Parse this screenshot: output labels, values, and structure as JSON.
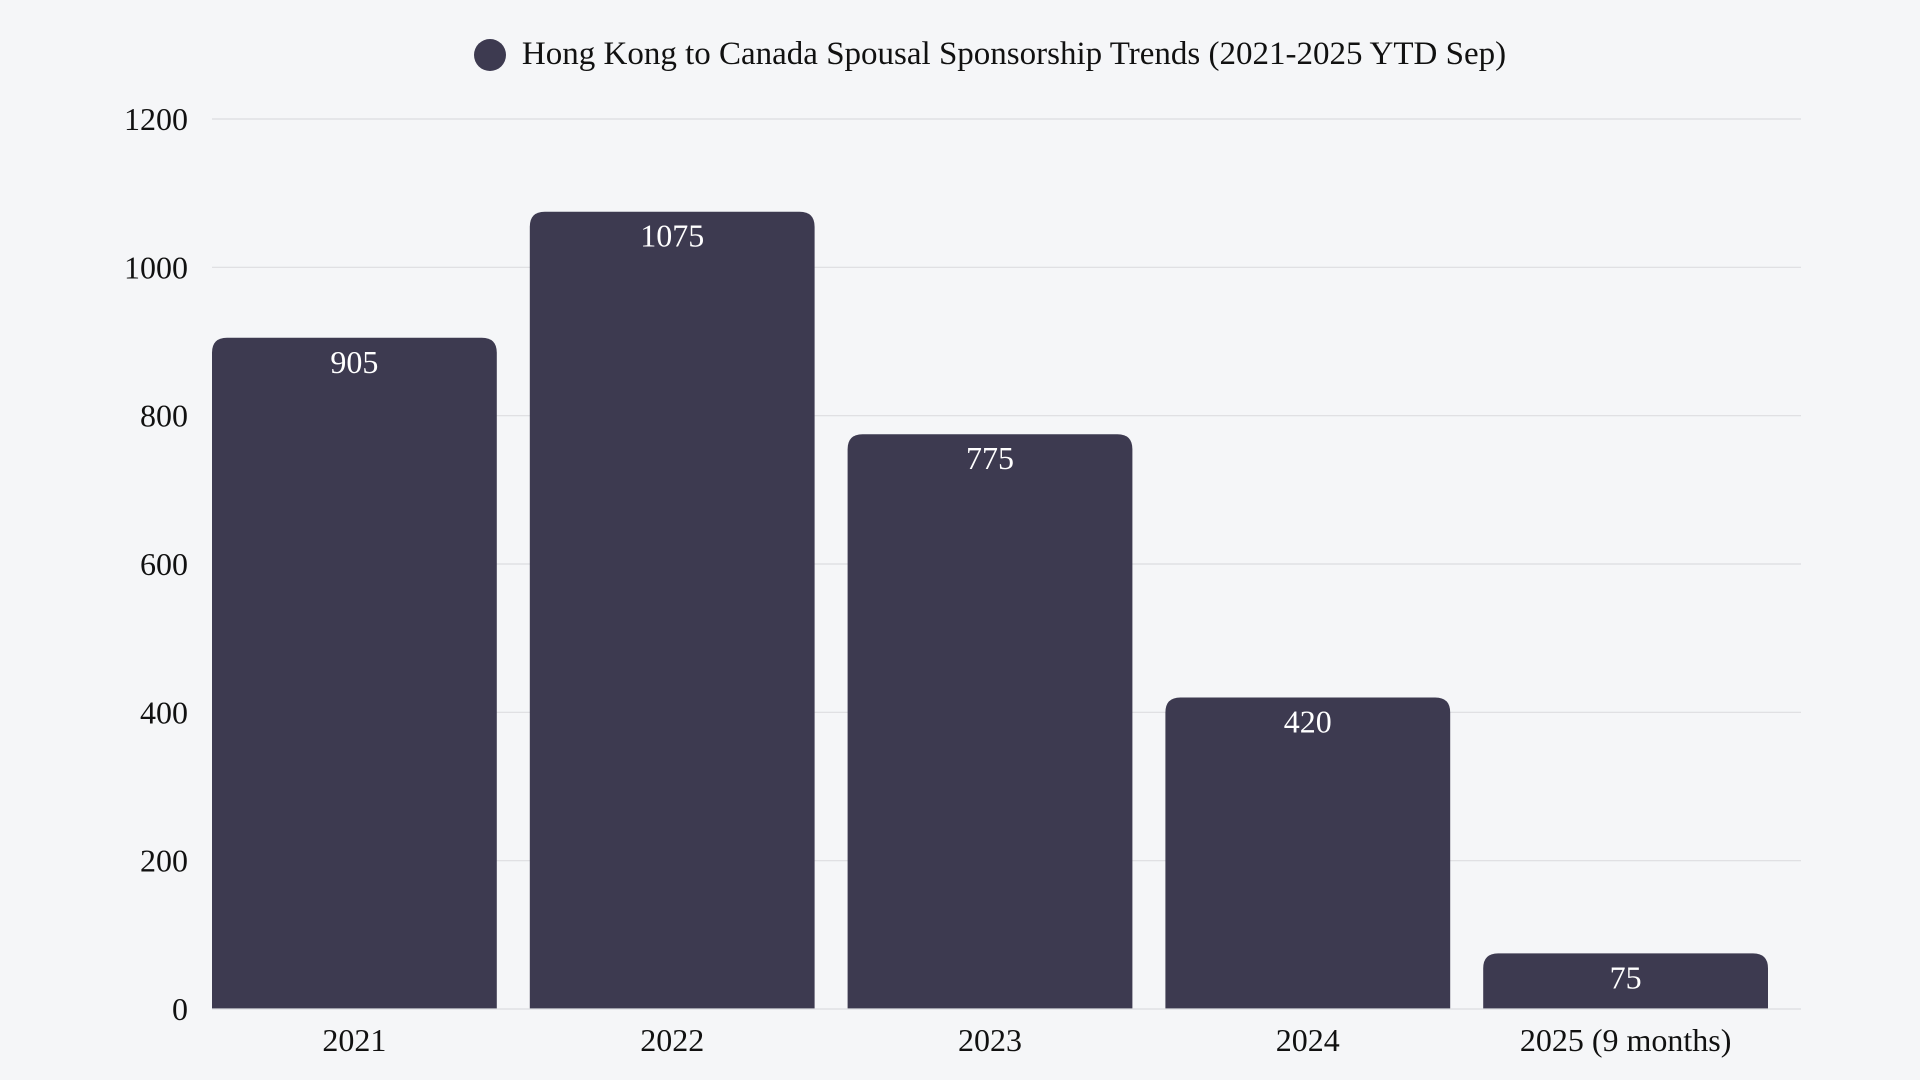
{
  "chart_data": {
    "type": "bar",
    "title": "",
    "xlabel": "",
    "ylabel": "",
    "categories": [
      "2021",
      "2022",
      "2023",
      "2024",
      "2025 (9 months)"
    ],
    "series": [
      {
        "name": "Hong Kong to Canada Spousal Sponsorship Trends (2021-2025 YTD Sep)",
        "values": [
          905,
          1075,
          775,
          420,
          75
        ]
      }
    ],
    "ylim": [
      0,
      1200
    ],
    "yticks": [
      0,
      200,
      400,
      600,
      800,
      1000,
      1200
    ],
    "grid": true,
    "legend_position": "top-center",
    "data_labels": true,
    "colors": {
      "bar": "#3d3a50",
      "background": "#f5f6f8",
      "grid": "#dcdde0",
      "label": "#ffffff"
    }
  }
}
